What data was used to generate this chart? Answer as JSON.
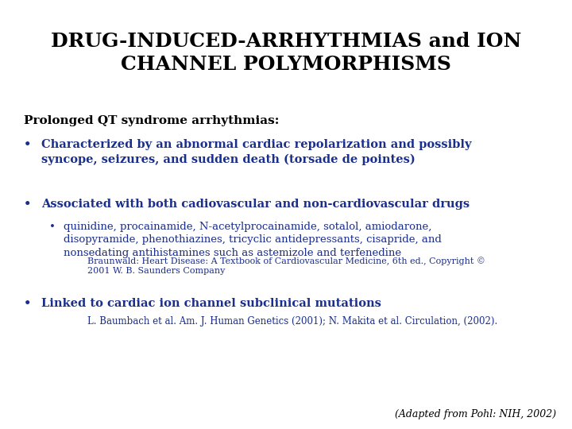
{
  "bg_color": "#ffffff",
  "title_line1": "DRUG-INDUCED-ARRHYTHMIAS and ION",
  "title_line2": "CHANNEL POLYMORPHISMS",
  "title_color": "#000000",
  "title_fontsize": 18,
  "section_header": "Prolonged QT syndrome arrhythmias:",
  "section_header_color": "#000000",
  "section_header_fontsize": 11,
  "bullet_color": "#1a2e8c",
  "bullet1_bold": "Characterized by an abnormal cardiac repolarization and possibly\nsyncope, seizures, and sudden death (torsade de pointes)",
  "bullet1_fontsize": 10.5,
  "bullet2_bold": "Associated with both cadiovascular and non-cardiovascular drugs",
  "bullet2_fontsize": 10.5,
  "bullet2_sub": "quinidine, procainamide, N-acetylprocainamide, sotalol, amiodarone,\ndisopyramide, phenothiazines, tricyclic antidepressants, cisapride, and\nnonsedating antihistamines such as astemizole and terfenedine",
  "bullet2_sub_fontsize": 9.5,
  "citation1": "Braunwald: Heart Disease: A Textbook of Cardiovascular Medicine, 6th ed., Copyright ©\n2001 W. B. Saunders Company",
  "citation1_fontsize": 8,
  "bullet3_bold": "Linked to cardiac ion channel subclinical mutations",
  "bullet3_fontsize": 10.5,
  "citation2": "L. Baumbach et al. Am. J. Human Genetics (2001); N. Makita et al. Circulation, (2002).",
  "citation2_fontsize": 8.5,
  "footer": "(Adapted from Pohl: NIH, 2002)",
  "footer_color": "#000000",
  "footer_fontsize": 9
}
